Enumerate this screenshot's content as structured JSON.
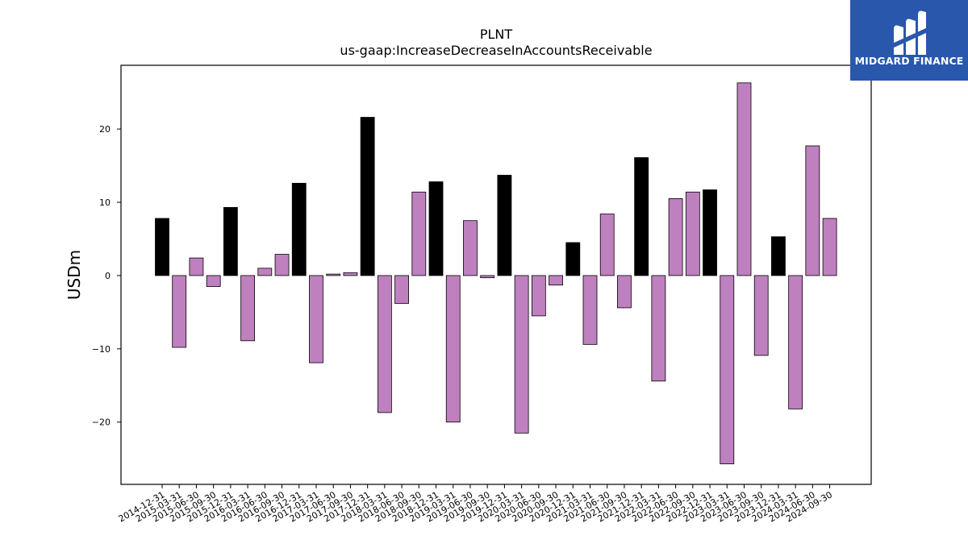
{
  "brand": {
    "name": "MIDGARD FINANCE",
    "color": "#2957ab"
  },
  "colors": {
    "positive_bar": "#000000",
    "negative_bar": "#bf80bf",
    "bar_edge": "#000000"
  },
  "chart_data": {
    "type": "bar",
    "title": "PLNT",
    "subtitle": "us-gaap:IncreaseDecreaseInAccountsReceivable",
    "xlabel": "",
    "ylabel": "USDm",
    "ylim": [
      -28.5,
      28.7
    ],
    "yticks": [
      -20,
      -10,
      0,
      10,
      20
    ],
    "grid": false,
    "categories": [
      "2014-12-31",
      "2015-03-31",
      "2015-06-30",
      "2015-09-30",
      "2015-12-31",
      "2016-03-31",
      "2016-06-30",
      "2016-09-30",
      "2016-12-31",
      "2017-03-31",
      "2017-06-30",
      "2017-09-30",
      "2017-12-31",
      "2018-03-31",
      "2018-06-30",
      "2018-09-30",
      "2018-12-31",
      "2019-03-31",
      "2019-06-30",
      "2019-09-30",
      "2019-12-31",
      "2020-03-31",
      "2020-06-30",
      "2020-09-30",
      "2020-12-31",
      "2021-03-31",
      "2021-06-30",
      "2021-09-30",
      "2021-12-31",
      "2022-03-31",
      "2022-06-30",
      "2022-09-30",
      "2022-12-31",
      "2023-03-31",
      "2023-06-30",
      "2023-09-30",
      "2023-12-31",
      "2024-03-31",
      "2024-06-30",
      "2024-09-30"
    ],
    "values": [
      7.8,
      -9.8,
      2.4,
      -1.5,
      9.3,
      -8.9,
      1.0,
      2.9,
      12.6,
      -11.9,
      0.2,
      0.4,
      21.6,
      -18.7,
      -3.8,
      11.4,
      12.8,
      -20.0,
      7.5,
      -0.3,
      13.7,
      -21.5,
      -5.5,
      -1.3,
      4.5,
      -9.4,
      8.4,
      -4.4,
      16.1,
      -14.4,
      10.5,
      11.4,
      11.7,
      -25.7,
      26.3,
      -10.9,
      5.3,
      -18.2,
      17.7,
      7.8
    ],
    "is_year_end": [
      true,
      false,
      false,
      false,
      true,
      false,
      false,
      false,
      true,
      false,
      false,
      false,
      true,
      false,
      false,
      false,
      true,
      false,
      false,
      false,
      true,
      false,
      false,
      false,
      true,
      false,
      false,
      false,
      true,
      false,
      false,
      false,
      true,
      false,
      false,
      false,
      true,
      false,
      false,
      false
    ]
  }
}
